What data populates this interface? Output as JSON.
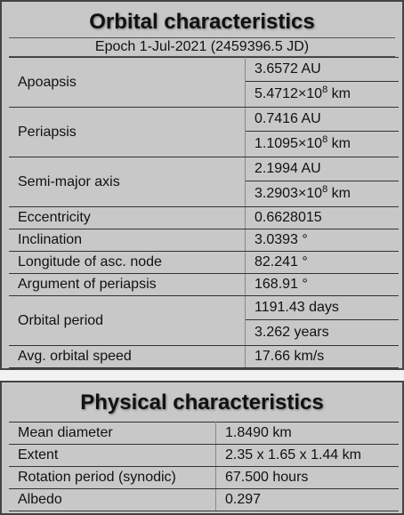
{
  "orbital": {
    "title": "Orbital characteristics",
    "epoch": "Epoch 1-Jul-2021 (2459396.5 JD)",
    "apoapsis": {
      "label": "Apoapsis",
      "au": "3.6572 AU",
      "km_base": "5.4712×10",
      "km_exp": "8",
      "km_unit": " km"
    },
    "periapsis": {
      "label": "Periapsis",
      "au": "0.7416 AU",
      "km_base": "1.1095×10",
      "km_exp": "8",
      "km_unit": " km"
    },
    "semimajor": {
      "label": "Semi-major axis",
      "au": "2.1994 AU",
      "km_base": "3.2903×10",
      "km_exp": "8",
      "km_unit": " km"
    },
    "eccentricity": {
      "label": "Eccentricity",
      "value": "0.6628015"
    },
    "inclination": {
      "label": "Inclination",
      "value": "3.0393 °"
    },
    "lon_asc_node": {
      "label": "Longitude of asc. node",
      "value": "82.241 °"
    },
    "arg_periapsis": {
      "label": "Argument of periapsis",
      "value": "168.91 °"
    },
    "period": {
      "label": "Orbital period",
      "days": "1191.43 days",
      "years": "3.262 years"
    },
    "speed": {
      "label": "Avg. orbital speed",
      "value": "17.66 km/s"
    }
  },
  "physical": {
    "title": "Physical characteristics",
    "rows": [
      {
        "label": "Mean diameter",
        "value": "1.8490 km"
      },
      {
        "label": "Extent",
        "value": "2.35 x 1.65 x 1.44 km"
      },
      {
        "label": "Rotation period (synodic)",
        "value": "67.500 hours"
      },
      {
        "label": "Albedo",
        "value": "0.297"
      }
    ]
  }
}
